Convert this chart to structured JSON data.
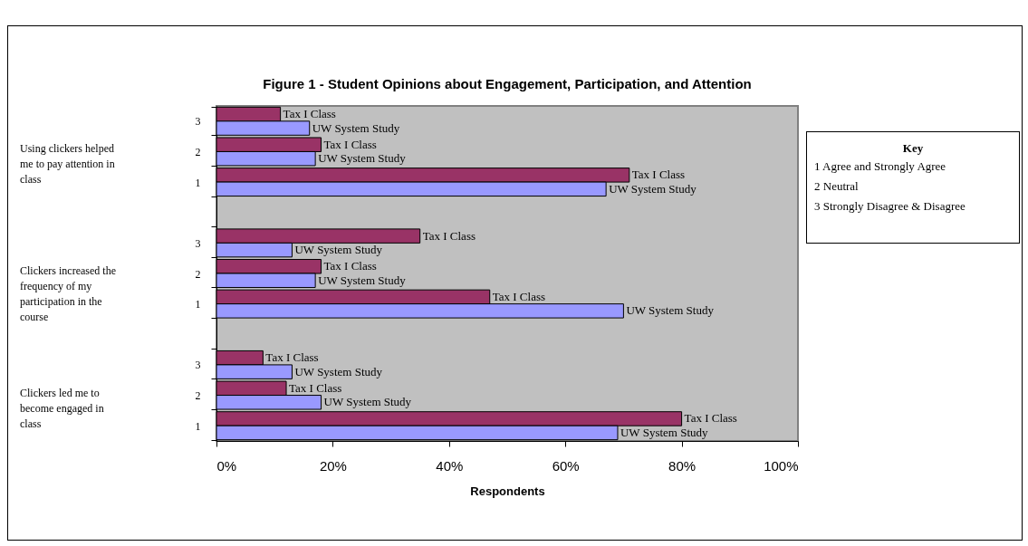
{
  "chart_data": {
    "type": "bar",
    "orientation": "horizontal",
    "title": "Figure 1 - Student Opinions about Engagement, Participation, and Attention",
    "xlabel": "Respondents",
    "legend_title": "Key",
    "categories": [
      "3",
      "2",
      "1",
      null,
      "3",
      "2",
      "1",
      null,
      "3",
      "2",
      "1"
    ],
    "series": [
      {
        "name": "Tax I Class",
        "color": "#993366",
        "values": [
          11,
          18,
          71,
          null,
          35,
          18,
          47,
          null,
          8,
          12,
          80
        ]
      },
      {
        "name": "UW System Study",
        "color": "#9999ff",
        "values": [
          16,
          17,
          67,
          null,
          13,
          17,
          70,
          null,
          13,
          18,
          69
        ]
      }
    ],
    "xlim": [
      0,
      100
    ],
    "xticks": [
      {
        "value": 0,
        "label": "0%"
      },
      {
        "value": 20,
        "label": "20%"
      },
      {
        "value": 40,
        "label": "40%"
      },
      {
        "value": 60,
        "label": "60%"
      },
      {
        "value": 80,
        "label": "80%"
      },
      {
        "value": 100,
        "label": "100%"
      }
    ],
    "annotations": [
      "Using clickers helped me to pay attention in class",
      "Clickers increased the frequency of my participation in the course",
      "Clickers led me to become engaged in class",
      "1 Agree and Strongly Agree",
      "2 Neutral",
      "3 Strongly Disagree & Disagree"
    ]
  }
}
